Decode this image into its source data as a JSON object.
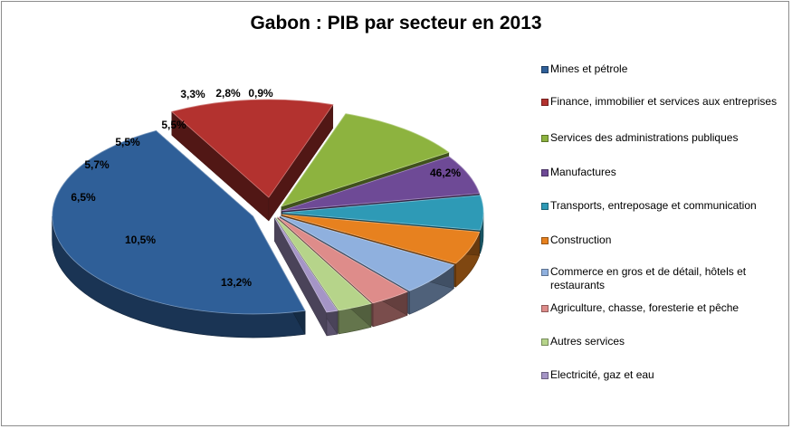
{
  "chart_data": {
    "type": "pie",
    "title": "Gabon : PIB par secteur en 2013",
    "slices": [
      {
        "label": "Mines et pétrole",
        "value": 46.2,
        "value_label": "46,2%",
        "color": "#2f5f98"
      },
      {
        "label": "Finance, immobilier et services aux entreprises",
        "value": 13.2,
        "value_label": "13,2%",
        "color": "#b3322f"
      },
      {
        "label": "Services des administrations publiques",
        "value": 10.5,
        "value_label": "10,5%",
        "color": "#8db33f"
      },
      {
        "label": "Manufactures",
        "value": 6.5,
        "value_label": "6,5%",
        "color": "#6e4a96"
      },
      {
        "label": "Transports, entreposage et communication",
        "value": 5.7,
        "value_label": "5,7%",
        "color": "#2e9ab6"
      },
      {
        "label": "Construction",
        "value": 5.5,
        "value_label": "5,5%",
        "color": "#e7811f"
      },
      {
        "label": "Commerce en gros et de détail, hôtels et restaurants",
        "value": 5.5,
        "value_label": "5,5%",
        "color": "#8fb0de"
      },
      {
        "label": "Agriculture, chasse, foresterie et pêche",
        "value": 3.3,
        "value_label": "3,3%",
        "color": "#de8c8a"
      },
      {
        "label": "Autres services",
        "value": 2.8,
        "value_label": "2,8%",
        "color": "#b6d48a"
      },
      {
        "label": "Electricité, gaz et eau",
        "value": 0.9,
        "value_label": "0,9%",
        "color": "#a595c6"
      }
    ],
    "legend_position": "right",
    "style": "exploded-3d"
  }
}
